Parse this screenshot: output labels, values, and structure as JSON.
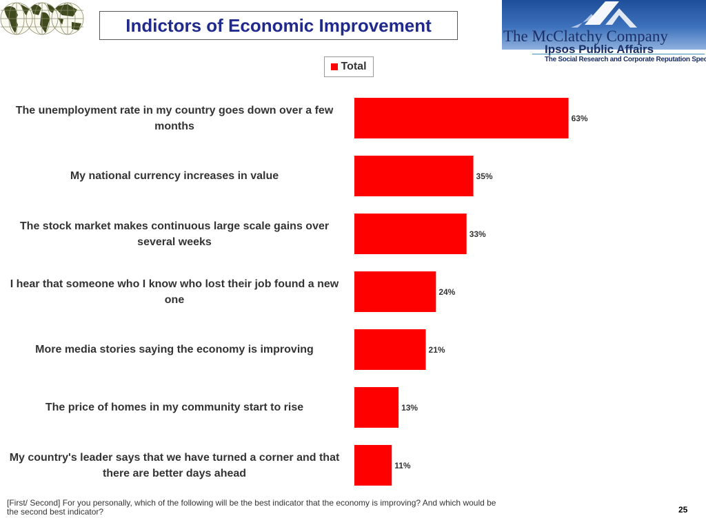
{
  "page": {
    "title": "Indictors of Economic Improvement",
    "footnote": "[First/ Second] For you personally, which of the following will be the best indicator that the economy is improving? And which would be the second best indicator?",
    "page_number": "25"
  },
  "logo": {
    "company": "The McClatchy Company",
    "ipsos": "Ipsos Public Affairs",
    "tagline": "The Social Research and Corporate Reputation Specialists"
  },
  "chart_data": {
    "type": "bar",
    "orientation": "horizontal",
    "title": "Indictors of Economic Improvement",
    "legend": [
      "Total"
    ],
    "legend_position": "top",
    "grid": false,
    "xlim": [
      0,
      100
    ],
    "value_suffix": "%",
    "categories": [
      "The unemployment rate in my country goes down over a few months",
      "My national currency increases in value",
      "The stock market makes continuous large scale gains over several weeks",
      "I hear that someone who I know who lost their job found a new one",
      "More media stories saying the economy is improving",
      "The price of homes in my community start to rise",
      "My country's leader says that we have turned a corner and that there are better days ahead"
    ],
    "series": [
      {
        "name": "Total",
        "color": "#ff0000",
        "values": [
          63,
          35,
          33,
          24,
          21,
          13,
          11
        ]
      }
    ]
  }
}
